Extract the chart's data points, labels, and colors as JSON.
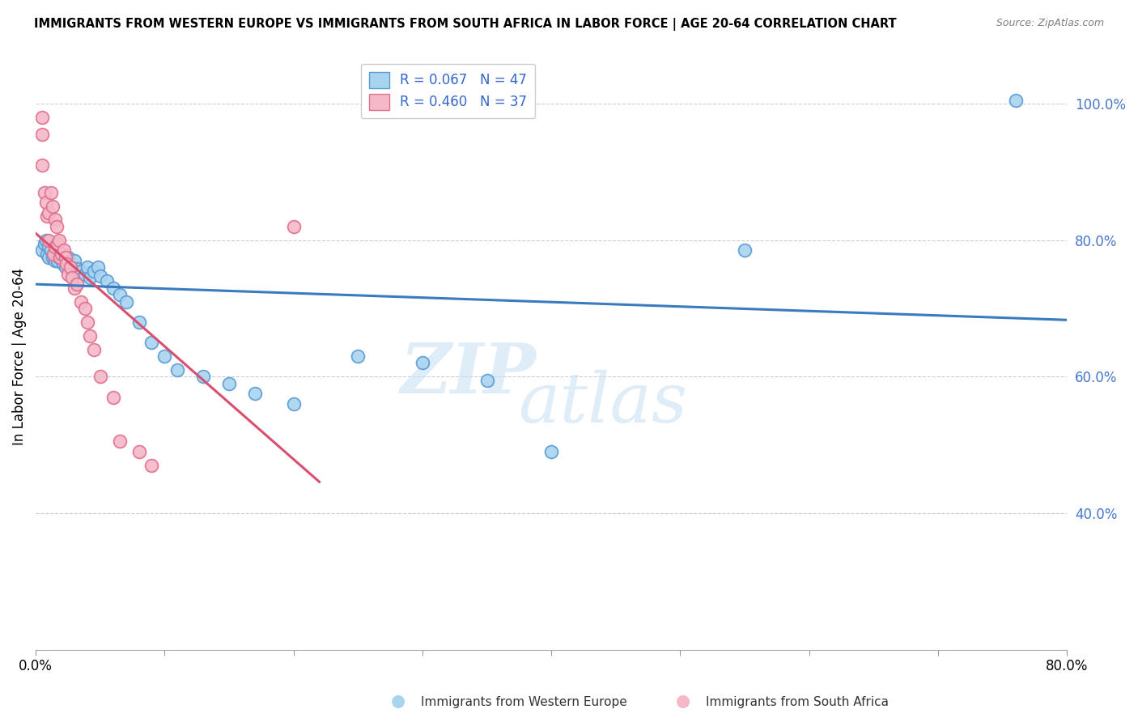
{
  "title": "IMMIGRANTS FROM WESTERN EUROPE VS IMMIGRANTS FROM SOUTH AFRICA IN LABOR FORCE | AGE 20-64 CORRELATION CHART",
  "source": "Source: ZipAtlas.com",
  "xlabel_blue": "Immigrants from Western Europe",
  "xlabel_pink": "Immigrants from South Africa",
  "ylabel": "In Labor Force | Age 20-64",
  "blue_R": 0.067,
  "blue_N": 47,
  "pink_R": 0.46,
  "pink_N": 37,
  "blue_color": "#a8d4f0",
  "pink_color": "#f5b8c8",
  "blue_edge_color": "#5b9bd5",
  "pink_edge_color": "#e07090",
  "blue_line_color": "#3a7abf",
  "pink_line_color": "#d94f70",
  "legend_text_color": "#3366cc",
  "ytick_color": "#4477cc",
  "xlim": [
    0.0,
    0.8
  ],
  "ylim": [
    0.2,
    1.06
  ],
  "yticks": [
    0.4,
    0.6,
    0.8,
    1.0
  ],
  "ytick_labels": [
    "40.0%",
    "60.0%",
    "80.0%",
    "100.0%"
  ],
  "watermark_top": "ZIP",
  "watermark_bottom": "atlas",
  "background_color": "#ffffff",
  "grid_color": "#cccccc",
  "blue_scatter": [
    [
      0.005,
      0.785
    ],
    [
      0.007,
      0.795
    ],
    [
      0.008,
      0.8
    ],
    [
      0.009,
      0.78
    ],
    [
      0.01,
      0.79
    ],
    [
      0.01,
      0.775
    ],
    [
      0.012,
      0.785
    ],
    [
      0.013,
      0.775
    ],
    [
      0.014,
      0.78
    ],
    [
      0.015,
      0.77
    ],
    [
      0.016,
      0.79
    ],
    [
      0.017,
      0.77
    ],
    [
      0.018,
      0.775
    ],
    [
      0.02,
      0.775
    ],
    [
      0.021,
      0.765
    ],
    [
      0.022,
      0.78
    ],
    [
      0.023,
      0.76
    ],
    [
      0.025,
      0.775
    ],
    [
      0.026,
      0.76
    ],
    [
      0.028,
      0.76
    ],
    [
      0.03,
      0.77
    ],
    [
      0.032,
      0.758
    ],
    [
      0.035,
      0.755
    ],
    [
      0.038,
      0.75
    ],
    [
      0.04,
      0.76
    ],
    [
      0.042,
      0.745
    ],
    [
      0.045,
      0.755
    ],
    [
      0.048,
      0.76
    ],
    [
      0.05,
      0.748
    ],
    [
      0.055,
      0.74
    ],
    [
      0.06,
      0.73
    ],
    [
      0.065,
      0.72
    ],
    [
      0.07,
      0.71
    ],
    [
      0.08,
      0.68
    ],
    [
      0.09,
      0.65
    ],
    [
      0.1,
      0.63
    ],
    [
      0.11,
      0.61
    ],
    [
      0.13,
      0.6
    ],
    [
      0.15,
      0.59
    ],
    [
      0.17,
      0.575
    ],
    [
      0.2,
      0.56
    ],
    [
      0.25,
      0.63
    ],
    [
      0.3,
      0.62
    ],
    [
      0.35,
      0.595
    ],
    [
      0.4,
      0.49
    ],
    [
      0.55,
      0.785
    ],
    [
      0.76,
      1.005
    ]
  ],
  "pink_scatter": [
    [
      0.005,
      0.98
    ],
    [
      0.005,
      0.955
    ],
    [
      0.005,
      0.91
    ],
    [
      0.007,
      0.87
    ],
    [
      0.008,
      0.855
    ],
    [
      0.009,
      0.835
    ],
    [
      0.01,
      0.84
    ],
    [
      0.01,
      0.8
    ],
    [
      0.012,
      0.87
    ],
    [
      0.013,
      0.85
    ],
    [
      0.014,
      0.78
    ],
    [
      0.015,
      0.83
    ],
    [
      0.015,
      0.79
    ],
    [
      0.016,
      0.82
    ],
    [
      0.017,
      0.795
    ],
    [
      0.018,
      0.8
    ],
    [
      0.019,
      0.775
    ],
    [
      0.02,
      0.78
    ],
    [
      0.022,
      0.785
    ],
    [
      0.023,
      0.775
    ],
    [
      0.024,
      0.765
    ],
    [
      0.025,
      0.75
    ],
    [
      0.027,
      0.76
    ],
    [
      0.028,
      0.745
    ],
    [
      0.03,
      0.73
    ],
    [
      0.032,
      0.735
    ],
    [
      0.035,
      0.71
    ],
    [
      0.038,
      0.7
    ],
    [
      0.04,
      0.68
    ],
    [
      0.042,
      0.66
    ],
    [
      0.045,
      0.64
    ],
    [
      0.05,
      0.6
    ],
    [
      0.06,
      0.57
    ],
    [
      0.065,
      0.505
    ],
    [
      0.08,
      0.49
    ],
    [
      0.09,
      0.47
    ],
    [
      0.2,
      0.82
    ]
  ]
}
